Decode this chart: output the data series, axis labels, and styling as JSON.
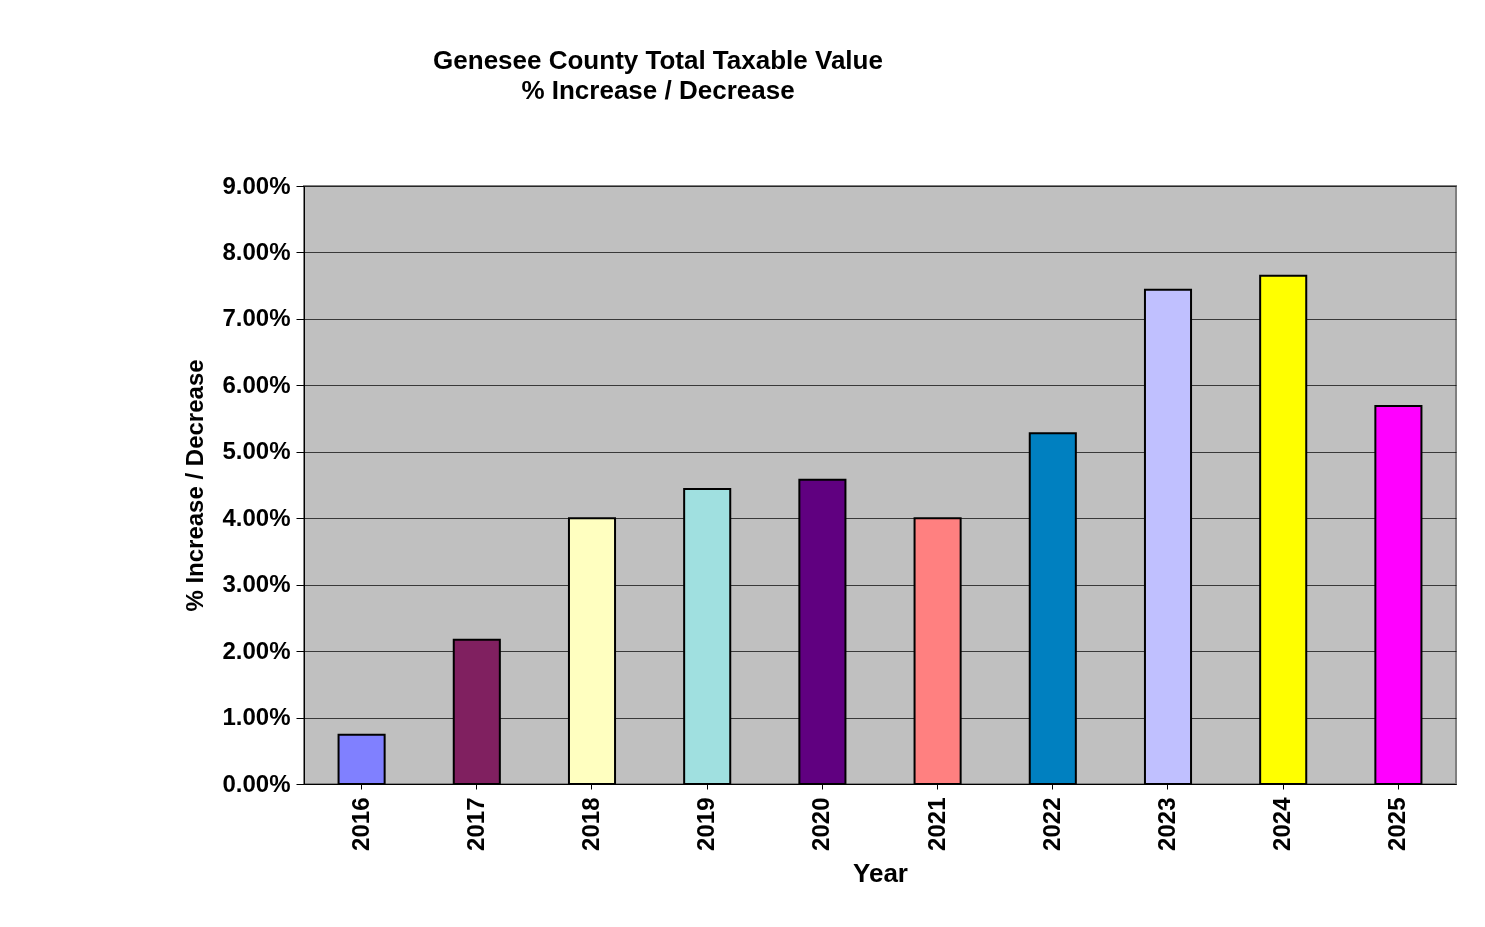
{
  "chart_data": {
    "type": "bar",
    "title": "Genesee County Total Taxable Value",
    "subtitle": "% Increase / Decrease",
    "xlabel": "Year",
    "ylabel": "% Increase / Decrease",
    "categories": [
      "2016",
      "2017",
      "2018",
      "2019",
      "2020",
      "2021",
      "2022",
      "2023",
      "2024",
      "2025"
    ],
    "values": [
      0.74,
      2.17,
      4.0,
      4.44,
      4.58,
      4.0,
      5.28,
      7.44,
      7.65,
      5.69
    ],
    "colors": [
      "#8080ff",
      "#802060",
      "#ffffc0",
      "#a0e0e0",
      "#600080",
      "#ff8080",
      "#0080c0",
      "#c0c0ff",
      "#ffff00",
      "#ff00ff"
    ],
    "ylim": [
      0,
      9
    ],
    "yticks": [
      {
        "value": 0,
        "label": "0.00%"
      },
      {
        "value": 1,
        "label": "1.00%"
      },
      {
        "value": 2,
        "label": "2.00%"
      },
      {
        "value": 3,
        "label": "3.00%"
      },
      {
        "value": 4,
        "label": "4.00%"
      },
      {
        "value": 5,
        "label": "5.00%"
      },
      {
        "value": 6,
        "label": "6.00%"
      },
      {
        "value": 7,
        "label": "7.00%"
      },
      {
        "value": 8,
        "label": "8.00%"
      },
      {
        "value": 9,
        "label": "9.00%"
      }
    ],
    "grid": "y",
    "legend": false
  }
}
